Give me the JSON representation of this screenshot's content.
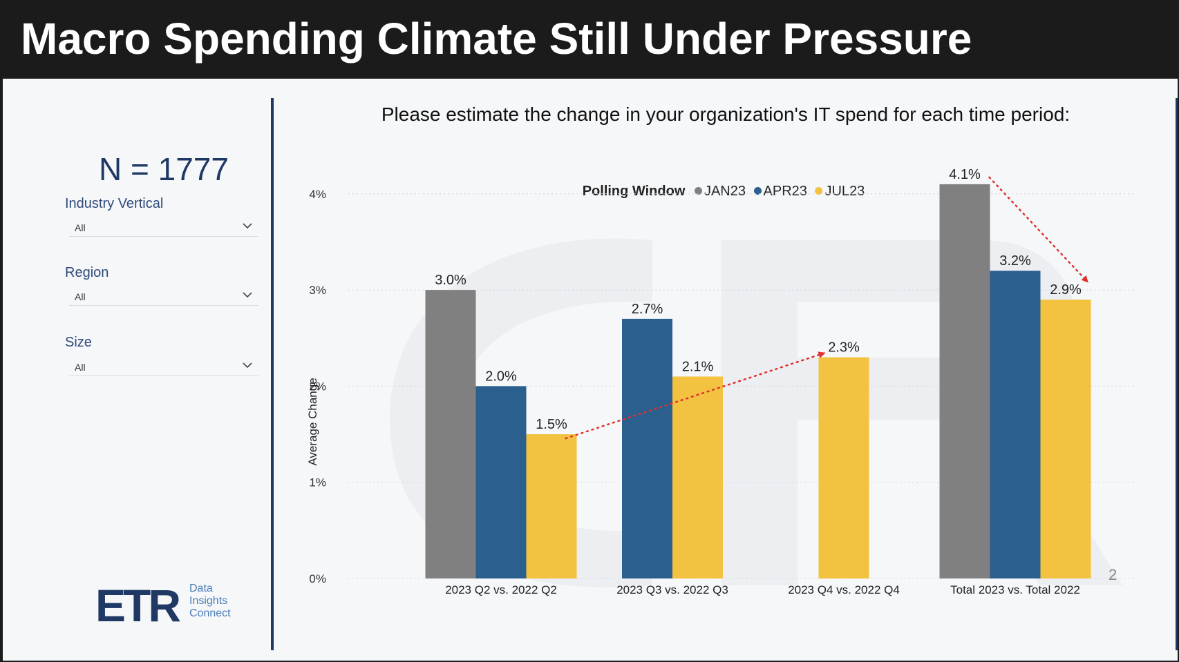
{
  "header": {
    "title": "Macro Spending Climate Still Under Pressure"
  },
  "sidebar": {
    "n_label": "N = 1777",
    "filters": [
      {
        "label": "Industry Vertical",
        "value": "All"
      },
      {
        "label": "Region",
        "value": "All"
      },
      {
        "label": "Size",
        "value": "All"
      }
    ],
    "logo": {
      "mark": "ETR",
      "line1": "Data",
      "line2": "Insights",
      "line3": "Connect"
    }
  },
  "question": "Please estimate the change in your organization's IT spend for each time period:",
  "legend": {
    "title": "Polling Window"
  },
  "page_number": "2",
  "chart_data": {
    "type": "bar",
    "categories": [
      "2023 Q2 vs. 2022 Q2",
      "2023 Q3 vs. 2022 Q3",
      "2023 Q4 vs. 2022 Q4",
      "Total 2023 vs. Total 2022"
    ],
    "series": [
      {
        "name": "JAN23",
        "color": "#808080",
        "values": [
          3.0,
          null,
          null,
          4.1
        ]
      },
      {
        "name": "APR23",
        "color": "#2b5f8e",
        "values": [
          2.0,
          2.7,
          null,
          3.2
        ]
      },
      {
        "name": "JUL23",
        "color": "#f2c240",
        "values": [
          1.5,
          2.1,
          2.3,
          2.9
        ]
      }
    ],
    "ylabel": "Average Change",
    "ylim": [
      0,
      4.3
    ],
    "yticks": [
      0,
      1,
      2,
      3,
      4
    ],
    "ytick_labels": [
      "0%",
      "1%",
      "2%",
      "3%",
      "4%"
    ],
    "value_suffix": "%",
    "legend_position": "top",
    "grid": true,
    "annotations": [
      {
        "type": "arrow",
        "color": "#e03030",
        "from": {
          "category": 0,
          "series": "JUL23"
        },
        "to": {
          "category": 2,
          "series": "JUL23"
        }
      },
      {
        "type": "arrow",
        "color": "#e03030",
        "from": {
          "category": 3,
          "series": "JAN23"
        },
        "to": {
          "category": 3,
          "series": "JUL23"
        }
      }
    ]
  }
}
